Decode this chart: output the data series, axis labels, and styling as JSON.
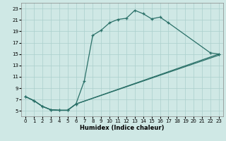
{
  "xlabel": "Humidex (Indice chaleur)",
  "bg_color": "#cfe8e5",
  "grid_color": "#aacfcc",
  "line_color": "#2a7068",
  "xlim": [
    -0.5,
    23.5
  ],
  "ylim": [
    4.0,
    24.0
  ],
  "xticks": [
    0,
    1,
    2,
    3,
    4,
    5,
    6,
    7,
    8,
    9,
    10,
    11,
    12,
    13,
    14,
    15,
    16,
    17,
    18,
    19,
    20,
    21,
    22,
    23
  ],
  "yticks": [
    5,
    7,
    9,
    11,
    13,
    15,
    17,
    19,
    21,
    23
  ],
  "curve1_x": [
    0,
    1,
    2,
    3,
    4,
    5,
    6,
    7,
    8,
    9,
    10,
    11,
    12,
    13,
    14,
    15,
    16,
    17,
    22,
    23
  ],
  "curve1_y": [
    7.5,
    6.8,
    5.8,
    5.2,
    5.1,
    5.1,
    6.2,
    10.3,
    18.3,
    19.2,
    20.5,
    21.1,
    21.3,
    22.7,
    22.1,
    21.2,
    21.5,
    20.5,
    15.2,
    15.0
  ],
  "curve2_x": [
    0,
    1,
    2,
    3,
    4,
    5,
    6,
    23
  ],
  "curve2_y": [
    7.5,
    6.8,
    5.8,
    5.2,
    5.1,
    5.1,
    6.2,
    15.0
  ],
  "curve3_x": [
    0,
    1,
    2,
    3,
    4,
    5,
    6,
    23
  ],
  "curve3_y": [
    7.5,
    6.8,
    5.8,
    5.2,
    5.1,
    5.1,
    6.2,
    14.8
  ]
}
